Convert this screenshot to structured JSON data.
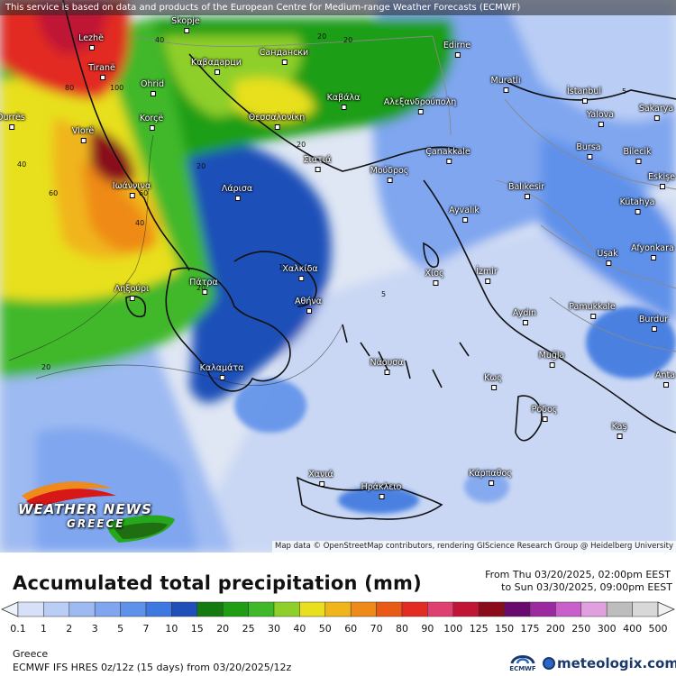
{
  "header": {
    "disclaimer": "This service is based on data and products of the European Centre for Medium-range Weather Forecasts (ECMWF)"
  },
  "map": {
    "attribution": "Map data © OpenStreetMap contributors, rendering GIScience Research Group @ Heidelberg University",
    "cities": [
      {
        "name": "Lezhë"
      },
      {
        "name": "Skopje"
      },
      {
        "name": "Tiranë"
      },
      {
        "name": "Καβαдарци"
      },
      {
        "name": "Сандански"
      },
      {
        "name": "Edirne"
      },
      {
        "name": "Ohrid"
      },
      {
        "name": "Muratlı"
      },
      {
        "name": "İstanbul"
      },
      {
        "name": "Sakarya"
      },
      {
        "name": "Καβάλα"
      },
      {
        "name": "Αλεξανδρούπολη"
      },
      {
        "name": "Durrës"
      },
      {
        "name": "Korçë"
      },
      {
        "name": "Θεσσαλονίκη"
      },
      {
        "name": "Yalova"
      },
      {
        "name": "Vlorë"
      },
      {
        "name": "Bursa"
      },
      {
        "name": "Bilecik"
      },
      {
        "name": "Çanakkale"
      },
      {
        "name": "Σιατιά"
      },
      {
        "name": "Μούδρος"
      },
      {
        "name": "Eskişe"
      },
      {
        "name": "Ιωάννινα"
      },
      {
        "name": "Λάρισα"
      },
      {
        "name": "Balıkesir"
      },
      {
        "name": "Kütahya"
      },
      {
        "name": "Ayvalık"
      },
      {
        "name": "Afyonkara"
      },
      {
        "name": "Uşak"
      },
      {
        "name": "Χαλκίδα"
      },
      {
        "name": "Χίος"
      },
      {
        "name": "İzmir"
      },
      {
        "name": "Ληξούρι"
      },
      {
        "name": "Πάτρα"
      },
      {
        "name": "Αθήνα"
      },
      {
        "name": "Aydın"
      },
      {
        "name": "Pamukkale"
      },
      {
        "name": "Burdur"
      },
      {
        "name": "Muğla"
      },
      {
        "name": "Νάουσα"
      },
      {
        "name": "Καλαμάτα"
      },
      {
        "name": "Κως"
      },
      {
        "name": "Anta"
      },
      {
        "name": "Ρόδος"
      },
      {
        "name": "Kaş"
      },
      {
        "name": "Χανιά"
      },
      {
        "name": "Ηράκλειο"
      },
      {
        "name": "Κάρπαθος"
      }
    ],
    "contour_labels": [
      "40",
      "20",
      "20",
      "80",
      "100",
      "60",
      "40",
      "20",
      "5",
      "20",
      "40",
      "60",
      "10",
      "20",
      "5",
      "20"
    ],
    "colors": {
      "sea_low": "#dfe6f4",
      "light_blue": "#9fbdf0",
      "mid_blue": "#4f86e6",
      "dark_blue": "#1d3fb0",
      "green": "#26a81c",
      "yellow": "#f2e21c",
      "orange": "#f08a1a",
      "red": "#d81818",
      "magenta": "#cc1678"
    }
  },
  "logo": {
    "line1": "WEATHER NEWS",
    "line2": "GREECE"
  },
  "legend": {
    "title": "Accumulated total precipitation (mm)",
    "period_from": "From Thu 03/20/2025, 02:00pm EEST",
    "period_to": "to Sun 03/30/2025, 09:00pm EEST",
    "scale": [
      "0.1",
      "1",
      "2",
      "3",
      "5",
      "7",
      "10",
      "15",
      "20",
      "25",
      "30",
      "40",
      "50",
      "60",
      "70",
      "80",
      "90",
      "100",
      "125",
      "150",
      "175",
      "200",
      "250",
      "300",
      "400",
      "500"
    ],
    "colors": [
      "#d6e0f7",
      "#b9cdf5",
      "#9dbaf2",
      "#7fa6ef",
      "#5f91ea",
      "#3e78e0",
      "#1f4fb8",
      "#157a10",
      "#1f9e15",
      "#3fb82a",
      "#8fcf2a",
      "#e8e01e",
      "#f0b51a",
      "#ef8a18",
      "#ea5a16",
      "#e22b22",
      "#e0406f",
      "#c01535",
      "#8a0b1a",
      "#6a0a6e",
      "#9b2aa0",
      "#c85fcb",
      "#e0a0e0",
      "#bdbdbd",
      "#d8d8d8"
    ]
  },
  "footer": {
    "region": "Greece",
    "model": "ECMWF IFS HRES 0z/12z (15 days) from 03/20/2025/12z",
    "ecmwf_label": "ECMWF",
    "brand": "meteologix.com"
  }
}
